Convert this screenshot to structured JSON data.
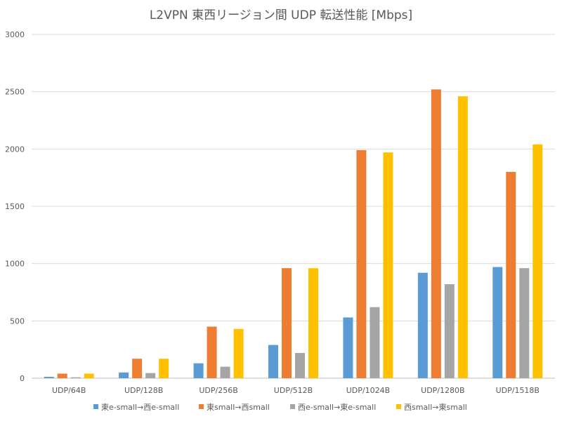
{
  "chart_data": {
    "type": "bar",
    "title": "L2VPN 東西リージョン間 UDP 転送性能 [Mbps]",
    "xlabel": "",
    "ylabel": "",
    "ylim": [
      0,
      3000
    ],
    "yticks": [
      0,
      500,
      1000,
      1500,
      2000,
      2500,
      3000
    ],
    "ytick_labels": [
      "0",
      "500",
      "1000",
      "1500",
      "2000",
      "2500",
      "3000"
    ],
    "grid": true,
    "legend_position": "bottom",
    "categories": [
      "UDP/64B",
      "UDP/128B",
      "UDP/256B",
      "UDP/512B",
      "UDP/1024B",
      "UDP/1280B",
      "UDP/1518B"
    ],
    "series": [
      {
        "name": "東e-small→西e-small",
        "color": "#5B9BD5",
        "values": [
          12,
          50,
          130,
          290,
          530,
          920,
          970
        ]
      },
      {
        "name": "東small→西small",
        "color": "#ED7D31",
        "values": [
          40,
          170,
          450,
          960,
          1990,
          2520,
          1800
        ]
      },
      {
        "name": "西e-small→東e-small",
        "color": "#A5A5A5",
        "values": [
          8,
          45,
          100,
          220,
          620,
          820,
          960
        ]
      },
      {
        "name": "西small→東small",
        "color": "#FFC000",
        "values": [
          40,
          170,
          430,
          960,
          1970,
          2460,
          2040
        ]
      }
    ]
  }
}
